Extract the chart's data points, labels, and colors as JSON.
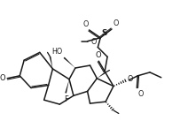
{
  "bg_color": "#ffffff",
  "line_color": "#1a1a1a",
  "line_width": 1.1,
  "figsize": [
    2.12,
    1.54
  ],
  "dpi": 100,
  "xlim": [
    0,
    10.5
  ],
  "ylim": [
    0,
    7.8
  ]
}
